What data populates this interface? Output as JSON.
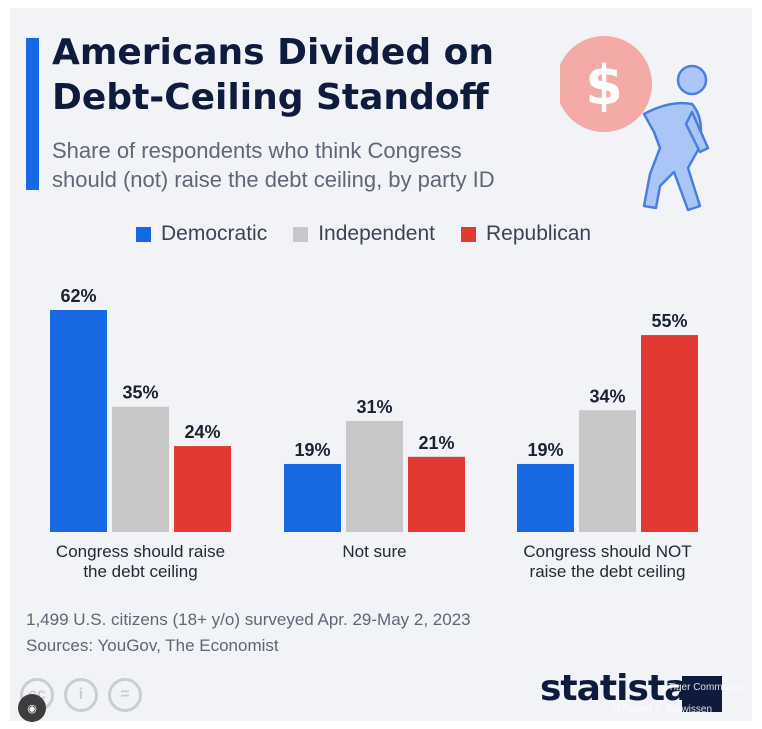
{
  "title": "Americans Divided on\nDebt-Ceiling Standoff",
  "subtitle": "Share of respondents who think Congress\nshould (not) raise the debt ceiling, by party ID",
  "footnote_survey": "1,499 U.S. citizens (18+ y/o) surveyed Apr. 29-May 2, 2023",
  "footnote_sources": "Sources: YouGov, The Economist",
  "logo": "statista",
  "watermark_line1": "Tiger Community",
  "watermark_line2": "@Robert J. Teuwissen",
  "colors": {
    "accent": "#1668e3",
    "democratic": "#1668e3",
    "independent": "#c7c7c7",
    "republican": "#e03a32",
    "text_dark": "#0f1b3d",
    "money_circle": "#f4aaa6",
    "figure": "#a9c6f7"
  },
  "icons": {
    "money": "dollar-circle-icon",
    "figure": "person-carrying-icon"
  },
  "chart_data": {
    "type": "bar",
    "title": "Americans Divided on Debt-Ceiling Standoff",
    "subtitle": "Share of respondents who think Congress should (not) raise the debt ceiling, by party ID",
    "categories": [
      [
        "Congress should raise",
        "the debt ceiling"
      ],
      [
        "Not sure"
      ],
      [
        "Congress should NOT",
        "raise the debt ceiling"
      ]
    ],
    "series": [
      {
        "name": "Democratic",
        "color": "#1668e3",
        "values": [
          62,
          19,
          19
        ]
      },
      {
        "name": "Independent",
        "color": "#c7c7c7",
        "values": [
          35,
          31,
          34
        ]
      },
      {
        "name": "Republican",
        "color": "#e03a32",
        "values": [
          24,
          21,
          55
        ]
      }
    ],
    "value_suffix": "%",
    "ylim": [
      0,
      62
    ],
    "xlabel": "",
    "ylabel": "",
    "grid": false,
    "legend": "top"
  }
}
